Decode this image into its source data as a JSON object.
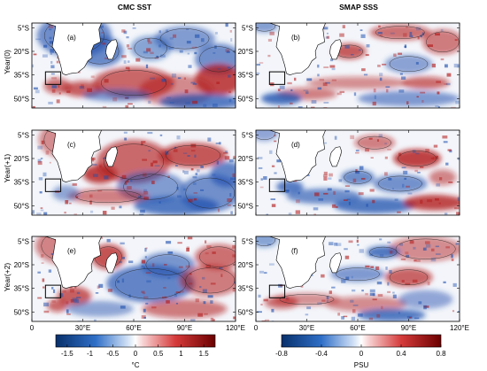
{
  "figure": {
    "columns": [
      {
        "title": "CMC SST",
        "colorbar": {
          "ticks": [
            "-1.5",
            "-1",
            "-0.5",
            "0",
            "0.5",
            "1",
            "1.5"
          ],
          "unit": "°C",
          "range": [
            -1.75,
            1.75
          ]
        }
      },
      {
        "title": "SMAP SSS",
        "colorbar": {
          "ticks": [
            "-0.8",
            "-0.4",
            "0",
            "0.4",
            "0.8"
          ],
          "unit": "PSU",
          "range": [
            -0.8,
            0.8
          ]
        }
      }
    ],
    "rows": [
      "Year(0)",
      "Year(+1)",
      "Year(+2)"
    ],
    "panel_labels": [
      "(a)",
      "(b)",
      "(c)",
      "(d)",
      "(e)",
      "(f)"
    ],
    "lat_ticks": [
      "5°S",
      "20°S",
      "35°S",
      "50°S"
    ],
    "lon_ticks": [
      "0",
      "30°E",
      "60°E",
      "90°E",
      "120°E"
    ],
    "colors": {
      "neg": "#1d4fae",
      "pos": "#b01515",
      "land": "#ffffff",
      "contour": "#222222"
    }
  }
}
